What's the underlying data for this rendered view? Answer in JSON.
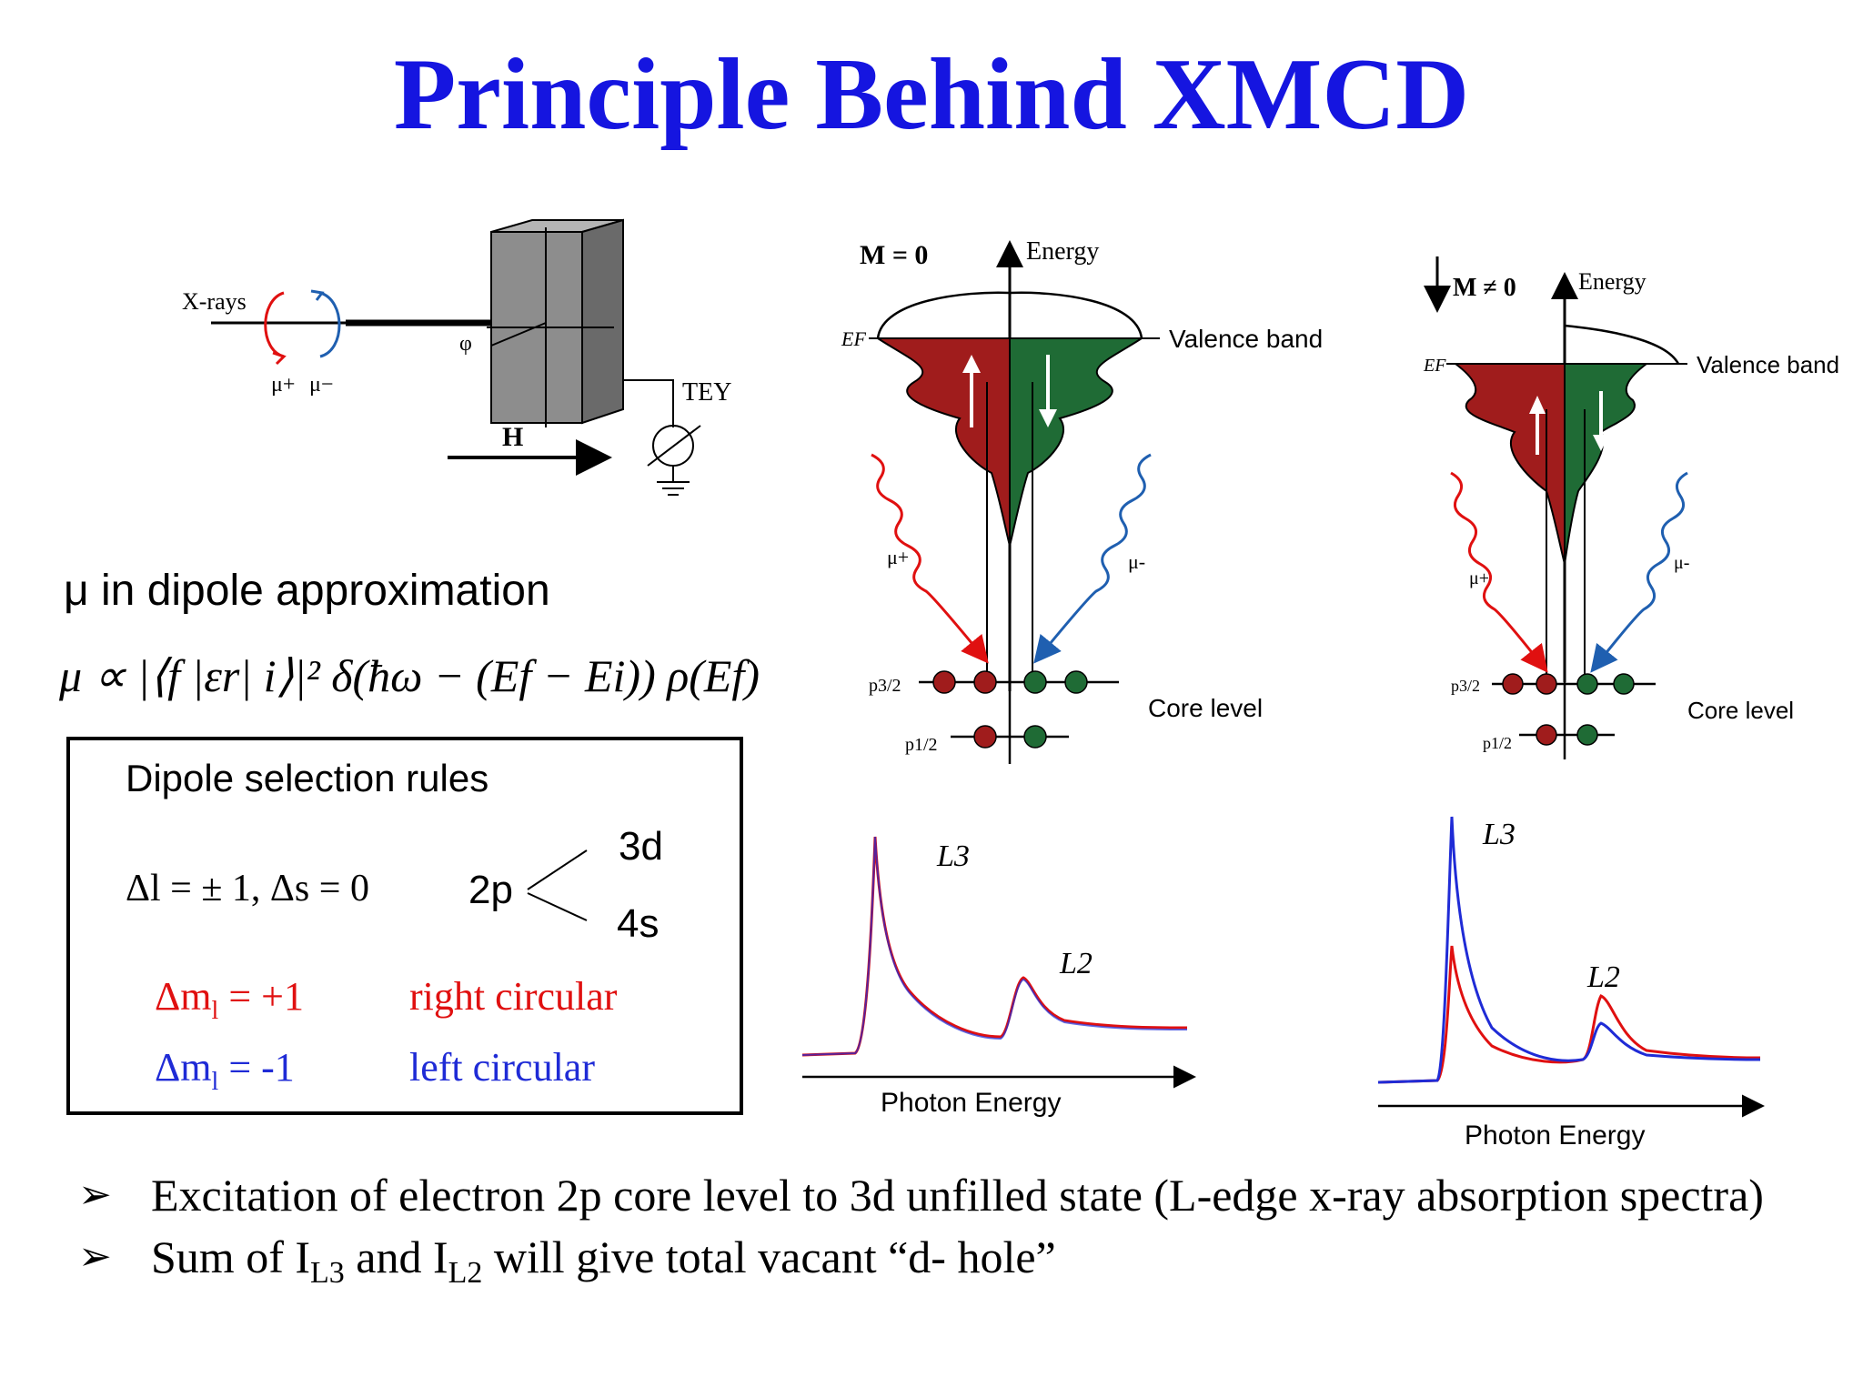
{
  "title": "Principle Behind XMCD",
  "setup": {
    "xrays": "X-rays",
    "mu_plus": "μ+",
    "mu_minus": "μ−",
    "phi": "φ",
    "tey": "TEY",
    "field": "H"
  },
  "dipole": {
    "heading": "μ in dipole approximation",
    "formula": "μ ∝ |⟨f |εr| i⟩|² δ(ħω − (Ef − Ei)) ρ(Ef)"
  },
  "rules": {
    "heading": "Dipole selection rules",
    "delta": "Δl = ± 1, Δs = 0",
    "two_p": "2p",
    "three_d": "3d",
    "four_s": "4s",
    "row1_left": "Δm",
    "row1_sub": "l",
    "row1_val": " = +1",
    "row1_right": "right circular",
    "row2_left": "Δm",
    "row2_sub": "l",
    "row2_val": " = -1",
    "row2_right": "left circular",
    "colors": {
      "red": "#e01010",
      "blue": "#1f2bd6"
    }
  },
  "band_left": {
    "m_label": "M = 0",
    "energy": "Energy",
    "ef": "EF",
    "valence": "Valence band",
    "mu_plus": "μ+",
    "mu_minus": "μ-",
    "p32": "p3/2",
    "p12": "p1/2",
    "core": "Core level"
  },
  "band_right": {
    "m_label": "M ≠ 0",
    "energy": "Energy",
    "ef": "EF",
    "valence": "Valence band",
    "mu_plus": "μ+",
    "mu_minus": "μ-",
    "p32": "p3/2",
    "p12": "p1/2",
    "core": "Core level"
  },
  "spectra_left": {
    "l3": "L3",
    "l2": "L2",
    "xlabel": "Photon Energy"
  },
  "spectra_right": {
    "l3": "L3",
    "l2": "L2",
    "xlabel": "Photon Energy"
  },
  "bullets": {
    "b1": "Excitation of electron  2p core level to 3d unfilled state (L-edge x-ray absorption spectra)",
    "b2_a": "Sum of I",
    "b2_sub1": "L3",
    "b2_b": " and I",
    "b2_sub2": "L2",
    "b2_c": " will give total vacant “d- hole”"
  },
  "colors": {
    "title": "#1515e0",
    "band_red": "#a01c1c",
    "band_green": "#1f6b35"
  }
}
